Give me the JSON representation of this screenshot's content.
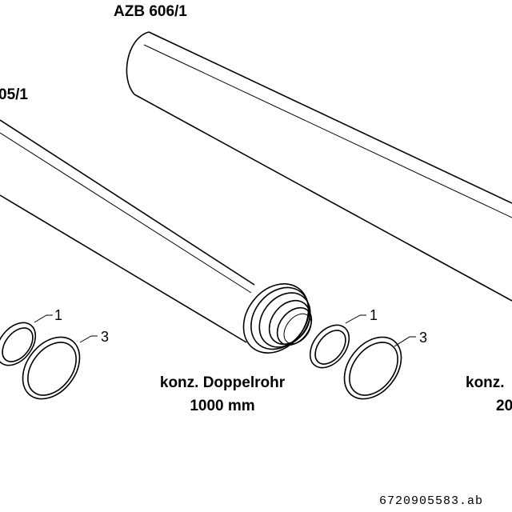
{
  "labels": {
    "azb_606": "AZB 606/1",
    "azb_605_partial": "05/1",
    "pipe_name_line1": "konz. Doppelrohr",
    "pipe_name_line2": "1000 mm",
    "pipe_name_right_partial_line1": "konz.",
    "pipe_name_right_partial_line2": "20",
    "callout_1": "1",
    "callout_3": "3",
    "drawing_code": "6720905583.ab"
  }
}
